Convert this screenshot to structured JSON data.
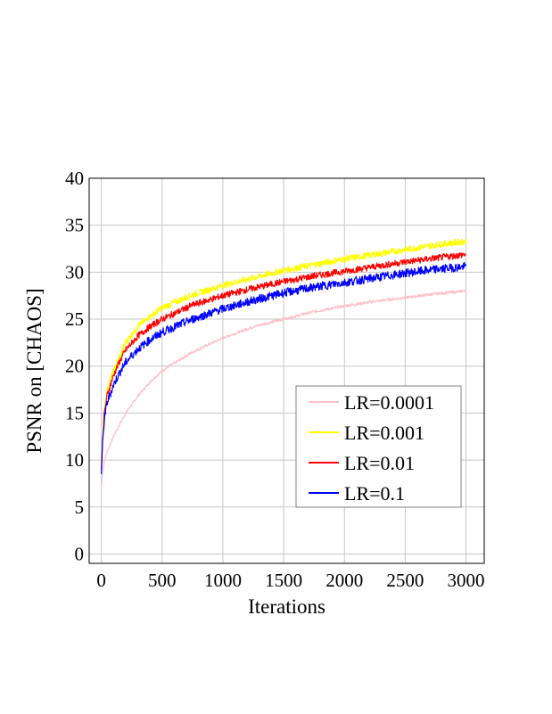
{
  "chart_data": {
    "type": "line",
    "title": "",
    "xlabel": "Iterations",
    "ylabel": "PSNR on [CHAOS]",
    "xlim": [
      -100,
      3150
    ],
    "ylim": [
      -1,
      40
    ],
    "xticks": [
      0,
      500,
      1000,
      1500,
      2000,
      2500,
      3000
    ],
    "yticks": [
      0,
      5,
      10,
      15,
      20,
      25,
      30,
      35,
      40
    ],
    "xtick_labels": [
      "0",
      "500",
      "1000",
      "1500",
      "2000",
      "2500",
      "3000"
    ],
    "ytick_labels": [
      "0",
      "5",
      "10",
      "15",
      "20",
      "25",
      "30",
      "35",
      "40"
    ],
    "grid": true,
    "legend_position": "center-right",
    "x": [
      0,
      10,
      25,
      50,
      100,
      150,
      200,
      300,
      400,
      500,
      750,
      1000,
      1250,
      1500,
      1750,
      2000,
      2250,
      2500,
      2750,
      3000
    ],
    "series": [
      {
        "name": "LR=0.0001",
        "color": "#ffc0cb",
        "values": [
          7.0,
          8.5,
          10.0,
          11.0,
          12.5,
          13.8,
          15.0,
          16.8,
          18.3,
          19.5,
          21.5,
          23.0,
          24.2,
          25.0,
          25.8,
          26.4,
          26.9,
          27.3,
          27.7,
          28.0
        ]
      },
      {
        "name": "LR=0.001",
        "color": "#ffff00",
        "values": [
          9.5,
          12.5,
          15.5,
          17.5,
          19.5,
          21.0,
          22.5,
          24.2,
          25.3,
          26.2,
          27.6,
          28.6,
          29.4,
          30.2,
          30.8,
          31.4,
          31.9,
          32.4,
          32.9,
          33.3
        ]
      },
      {
        "name": "LR=0.01",
        "color": "#ff0000",
        "values": [
          9.0,
          12.0,
          15.0,
          17.0,
          19.0,
          20.5,
          21.7,
          23.2,
          24.2,
          25.0,
          26.5,
          27.5,
          28.3,
          29.0,
          29.6,
          30.1,
          30.6,
          31.1,
          31.5,
          31.9
        ]
      },
      {
        "name": "LR=0.1",
        "color": "#0000ff",
        "values": [
          8.5,
          11.5,
          14.5,
          16.2,
          18.0,
          19.3,
          20.4,
          21.8,
          22.8,
          23.6,
          25.0,
          26.1,
          27.0,
          27.8,
          28.4,
          28.9,
          29.4,
          29.9,
          30.3,
          30.6
        ]
      }
    ]
  }
}
